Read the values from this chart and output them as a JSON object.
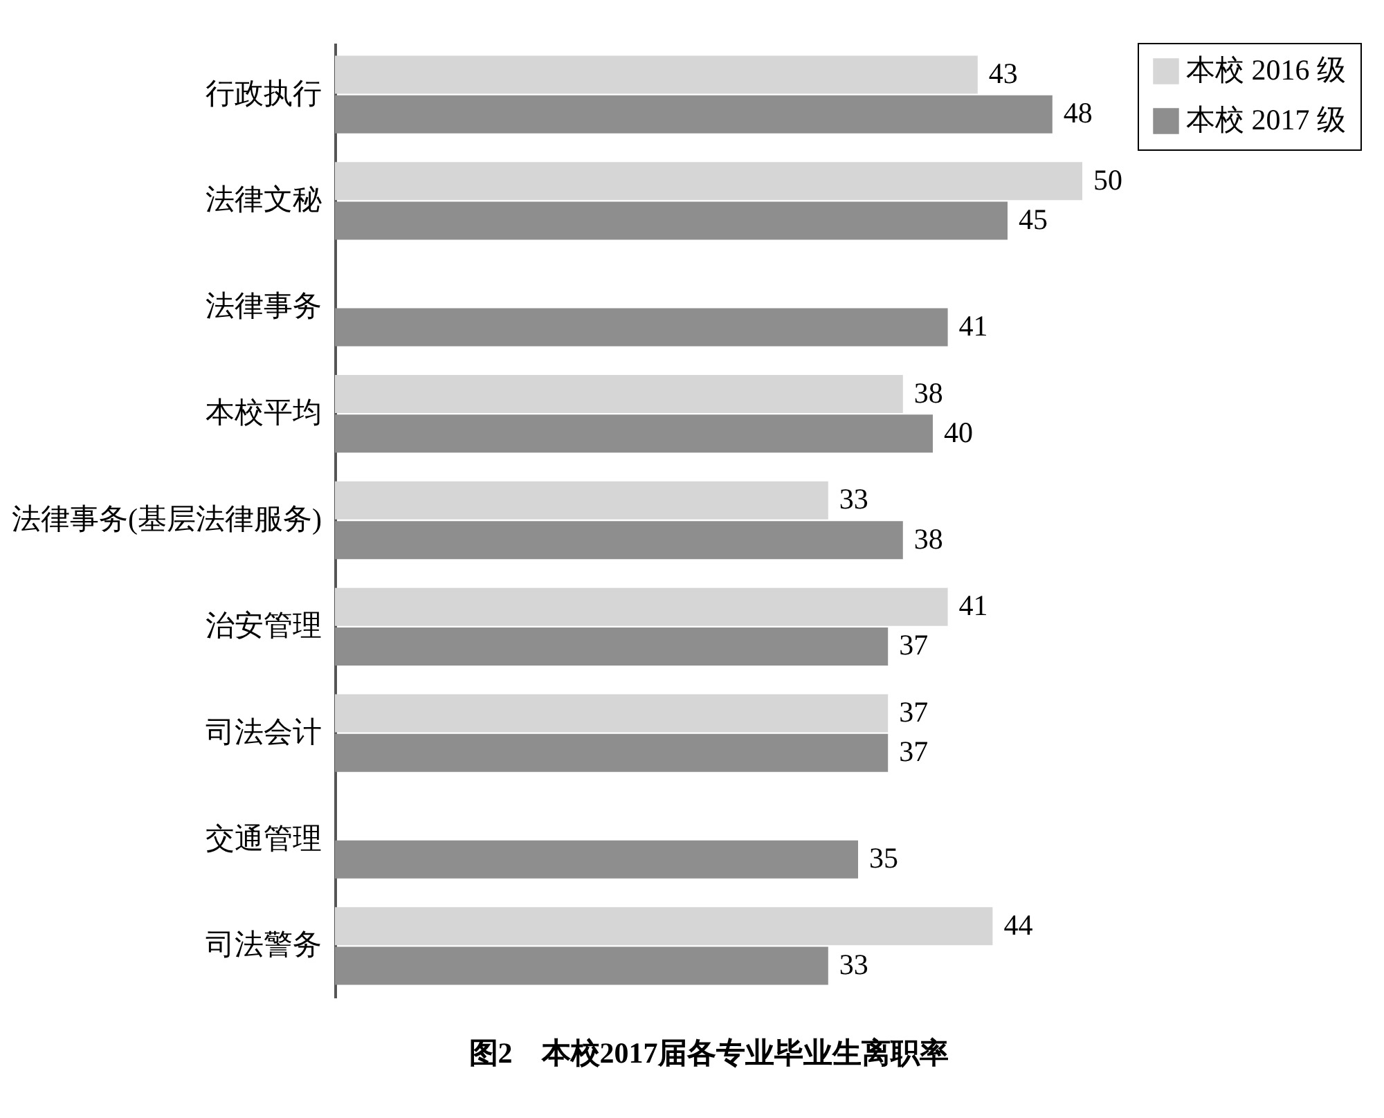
{
  "chart_data": {
    "type": "bar",
    "orientation": "horizontal",
    "title": "图2　本校2017届各专业毕业生离职率",
    "categories": [
      "行政执行",
      "法律文秘",
      "法律事务",
      "本校平均",
      "法律事务(基层法律服务)",
      "治安管理",
      "司法会计",
      "交通管理",
      "司法警务"
    ],
    "series": [
      {
        "name": "本校 2016 级",
        "color": "#d6d6d6",
        "values": [
          43,
          50,
          null,
          38,
          33,
          41,
          37,
          null,
          44
        ]
      },
      {
        "name": "本校 2017 级",
        "color": "#8e8e8e",
        "values": [
          48,
          45,
          41,
          40,
          38,
          37,
          37,
          35,
          33
        ]
      }
    ],
    "data_labels": true,
    "legend": "right"
  }
}
